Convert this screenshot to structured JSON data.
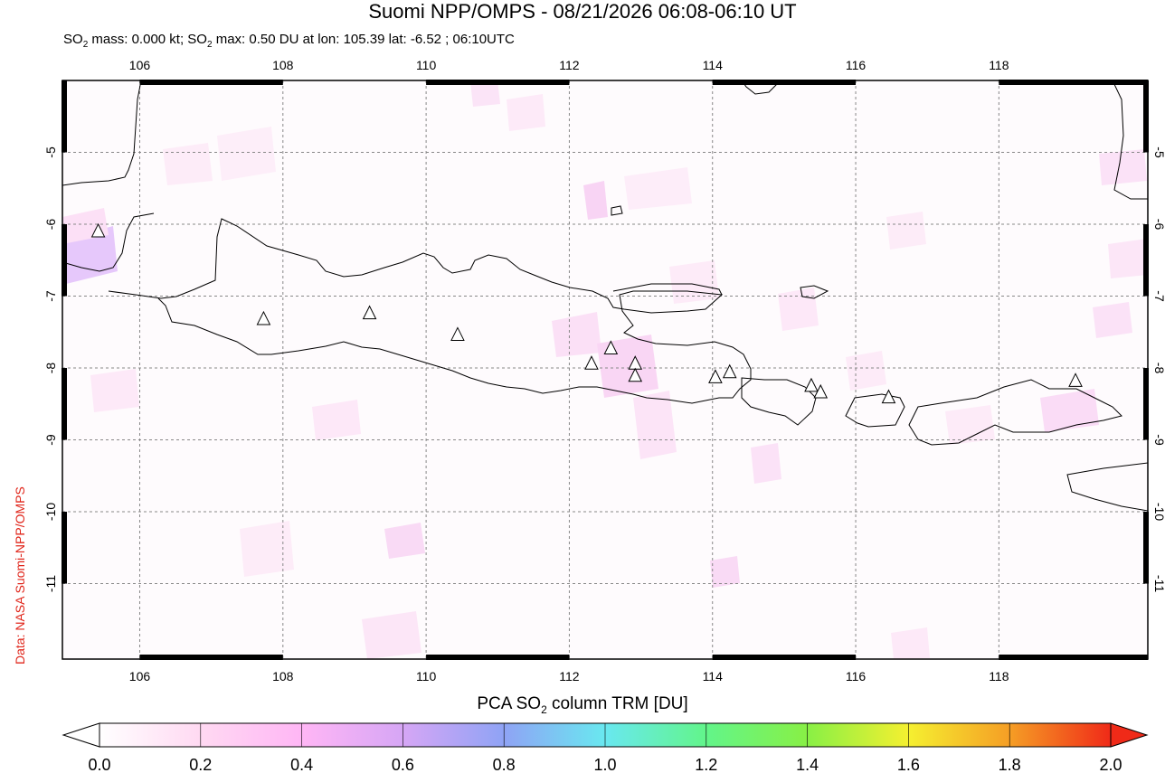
{
  "header": {
    "title": "Suomi NPP/OMPS - 08/21/2026 06:08-06:10 UT",
    "subtitle_prefix": "SO",
    "subtitle_part1": " mass: 0.000 kt; SO",
    "subtitle_part2": " max: 0.50 DU at lon: 105.39 lat: -6.52 ; 06:10UTC",
    "subscript": "2"
  },
  "credit": "Data: NASA Suomi-NPP/OMPS",
  "map": {
    "lon_range": [
      104.92,
      120.08
    ],
    "lat_range": [
      -12.05,
      -4.0
    ],
    "lon_ticks": [
      "106",
      "108",
      "110",
      "112",
      "114",
      "116",
      "118"
    ],
    "lat_ticks": [
      "-5",
      "-6",
      "-7",
      "-8",
      "-9",
      "-10",
      "-11"
    ],
    "volcanoes": [
      {
        "lon": 105.42,
        "lat": -6.1
      },
      {
        "lon": 107.73,
        "lat": -7.32
      },
      {
        "lon": 109.21,
        "lat": -7.24
      },
      {
        "lon": 110.44,
        "lat": -7.54
      },
      {
        "lon": 112.31,
        "lat": -7.94
      },
      {
        "lon": 112.58,
        "lat": -7.73
      },
      {
        "lon": 112.92,
        "lat": -7.94
      },
      {
        "lon": 112.92,
        "lat": -8.11
      },
      {
        "lon": 114.04,
        "lat": -8.13
      },
      {
        "lon": 114.24,
        "lat": -8.06
      },
      {
        "lon": 115.38,
        "lat": -8.25
      },
      {
        "lon": 115.51,
        "lat": -8.34
      },
      {
        "lon": 116.46,
        "lat": -8.41
      },
      {
        "lon": 119.07,
        "lat": -8.18
      }
    ]
  },
  "colorbar": {
    "title_prefix": "PCA SO",
    "title_suffix": " column TRM [DU]",
    "subscript": "2",
    "ticks": [
      "0.0",
      "0.2",
      "0.4",
      "0.6",
      "0.8",
      "1.0",
      "1.2",
      "1.4",
      "1.6",
      "1.8",
      "2.0"
    ],
    "colors": [
      "#ffffff",
      "#ffd9f2",
      "#ffb6f5",
      "#d6a6f5",
      "#8fa3f5",
      "#69e8f0",
      "#62f58a",
      "#88f045",
      "#f5f030",
      "#f59e25",
      "#f02a18"
    ]
  }
}
